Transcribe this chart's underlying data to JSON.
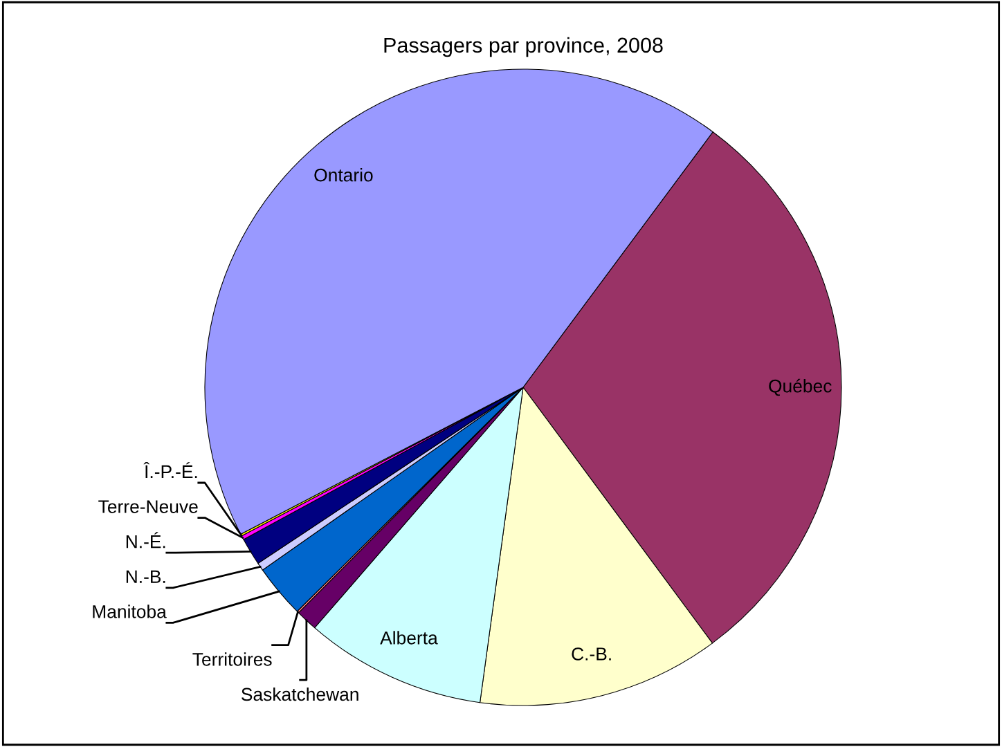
{
  "chart_data": {
    "type": "pie",
    "title": "Passagers par province, 2008",
    "categories": [
      "Québec",
      "C.-B.",
      "Alberta",
      "Saskatchewan",
      "Territoires",
      "Manitoba",
      "N.-B.",
      "N.-É.",
      "Terre-Neuve",
      "Î.-P.-É.",
      "Ontario"
    ],
    "values": [
      29.7,
      12.3,
      9.2,
      1.1,
      0.1,
      2.7,
      0.4,
      1.4,
      0.2,
      0.1,
      42.8
    ],
    "colors": [
      "#993366",
      "#ffffcc",
      "#ccffff",
      "#660066",
      "#ff8080",
      "#0066cc",
      "#ccccff",
      "#000080",
      "#ff00ff",
      "#ffff00",
      "#9999ff"
    ]
  }
}
